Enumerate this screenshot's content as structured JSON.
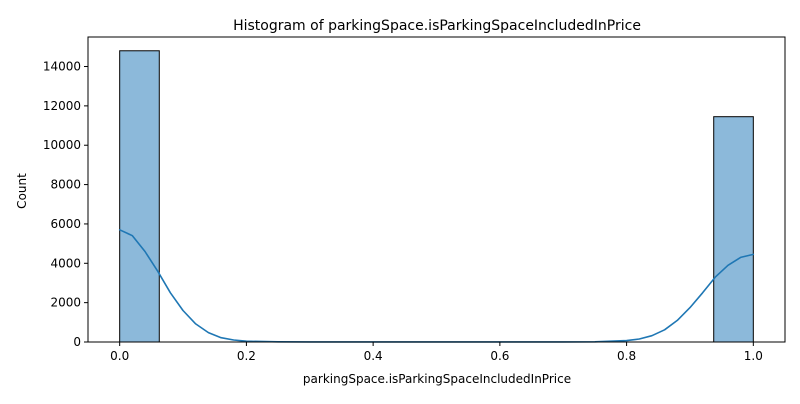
{
  "chart_data": {
    "type": "bar",
    "title": "Histogram of parkingSpace.isParkingSpaceIncludedInPrice",
    "xlabel": "parkingSpace.isParkingSpaceIncludedInPrice",
    "ylabel": "Count",
    "xlim": [
      -0.05,
      1.05
    ],
    "ylim": [
      0,
      15500
    ],
    "x_ticks": [
      0.0,
      0.2,
      0.4,
      0.6,
      0.8,
      1.0
    ],
    "x_tick_labels": [
      "0.0",
      "0.2",
      "0.4",
      "0.6",
      "0.8",
      "1.0"
    ],
    "y_ticks": [
      0,
      2000,
      4000,
      6000,
      8000,
      10000,
      12000,
      14000
    ],
    "y_tick_labels": [
      "0",
      "2000",
      "4000",
      "6000",
      "8000",
      "10000",
      "12000",
      "14000"
    ],
    "bins": [
      {
        "x0": 0.0,
        "x1": 0.0625,
        "count": 14800
      },
      {
        "x0": 0.9375,
        "x1": 1.0,
        "count": 11450
      }
    ],
    "kde": {
      "x": [
        0.0,
        0.02,
        0.04,
        0.06,
        0.08,
        0.1,
        0.12,
        0.14,
        0.16,
        0.18,
        0.2,
        0.25,
        0.3,
        0.4,
        0.5,
        0.6,
        0.7,
        0.75,
        0.8,
        0.82,
        0.84,
        0.86,
        0.88,
        0.9,
        0.92,
        0.94,
        0.96,
        0.98,
        1.0
      ],
      "y": [
        5700,
        5400,
        4600,
        3600,
        2500,
        1600,
        920,
        480,
        220,
        100,
        40,
        10,
        5,
        3,
        3,
        3,
        5,
        10,
        70,
        150,
        320,
        620,
        1100,
        1750,
        2500,
        3300,
        3900,
        4300,
        4450
      ]
    },
    "grid": false,
    "legend": "none",
    "colors": {
      "bar_fill": "#8cb9da",
      "bar_edge": "#000000",
      "kde_line": "#1f77b4",
      "axis": "#000000"
    }
  }
}
